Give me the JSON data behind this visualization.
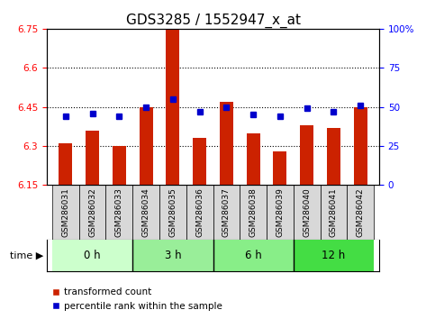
{
  "title": "GDS3285 / 1552947_x_at",
  "samples": [
    "GSM286031",
    "GSM286032",
    "GSM286033",
    "GSM286034",
    "GSM286035",
    "GSM286036",
    "GSM286037",
    "GSM286038",
    "GSM286039",
    "GSM286040",
    "GSM286041",
    "GSM286042"
  ],
  "bar_values": [
    6.31,
    6.36,
    6.3,
    6.45,
    6.75,
    6.33,
    6.47,
    6.35,
    6.28,
    6.38,
    6.37,
    6.45
  ],
  "percentile_values": [
    44,
    46,
    44,
    50,
    55,
    47,
    50,
    45,
    44,
    49,
    47,
    51
  ],
  "ylim_left": [
    6.15,
    6.75
  ],
  "ylim_right": [
    0,
    100
  ],
  "yticks_left": [
    6.15,
    6.3,
    6.45,
    6.6,
    6.75
  ],
  "yticks_right": [
    0,
    25,
    50,
    75,
    100
  ],
  "grid_values": [
    6.3,
    6.45,
    6.6
  ],
  "bar_color": "#cc2200",
  "dot_color": "#0000cc",
  "bar_baseline": 6.15,
  "time_groups": [
    {
      "label": "0 h",
      "start": 0,
      "end": 2,
      "color": "#ccffcc"
    },
    {
      "label": "3 h",
      "start": 3,
      "end": 5,
      "color": "#99ee99"
    },
    {
      "label": "6 h",
      "start": 6,
      "end": 8,
      "color": "#88ee88"
    },
    {
      "label": "12 h",
      "start": 9,
      "end": 11,
      "color": "#44dd44"
    }
  ],
  "legend_bar_label": "transformed count",
  "legend_dot_label": "percentile rank within the sample",
  "title_fontsize": 11,
  "tick_label_fontsize": 6.5,
  "time_label_fontsize": 8.5,
  "legend_fontsize": 7.5
}
